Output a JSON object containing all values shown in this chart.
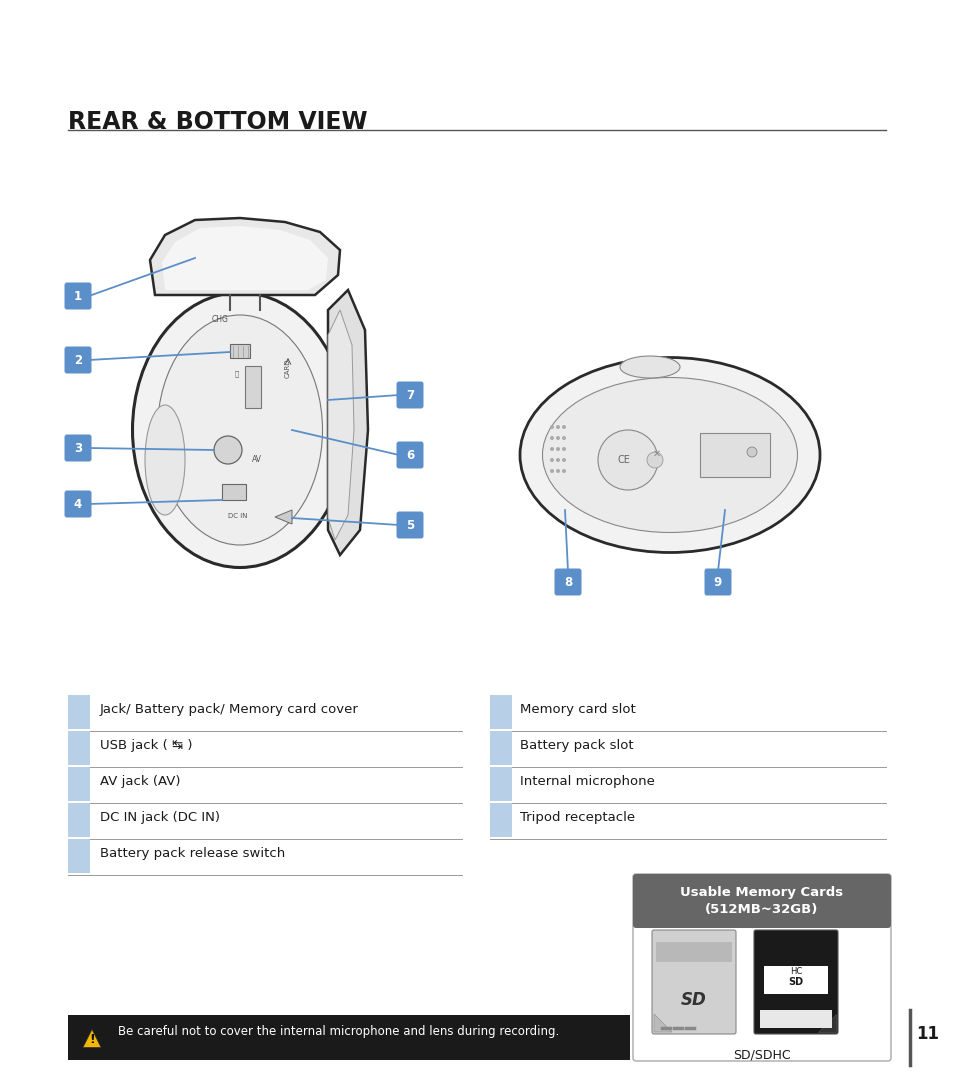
{
  "title": "REAR & BOTTOM VIEW",
  "background_color": "#ffffff",
  "title_color": "#1a1a1a",
  "title_fontsize": 17,
  "page_number": "11",
  "left_labels": [
    {
      "text": "Jack/ Battery pack/ Memory card cover"
    },
    {
      "text": "USB jack ( ↹ )"
    },
    {
      "text": "AV jack (AV)"
    },
    {
      "text": "DC IN jack (DC IN)"
    },
    {
      "text": "Battery pack release switch"
    }
  ],
  "right_labels": [
    {
      "text": "Memory card slot"
    },
    {
      "text": "Battery pack slot"
    },
    {
      "text": "Internal microphone"
    },
    {
      "text": "Tripod receptacle"
    }
  ],
  "warning_text": "Be careful not to cover the internal microphone and lens during recording.",
  "memory_card_title": "Usable Memory Cards\n(512MB~32GB)",
  "memory_card_label": "SD/SDHC",
  "badge_color": "#5b8fc9",
  "table_blue_color": "#b8cfe8",
  "table_line_color": "#999999",
  "memory_card_header_bg": "#666666",
  "memory_card_header_text": "#ffffff",
  "memory_card_border": "#aaaaaa"
}
